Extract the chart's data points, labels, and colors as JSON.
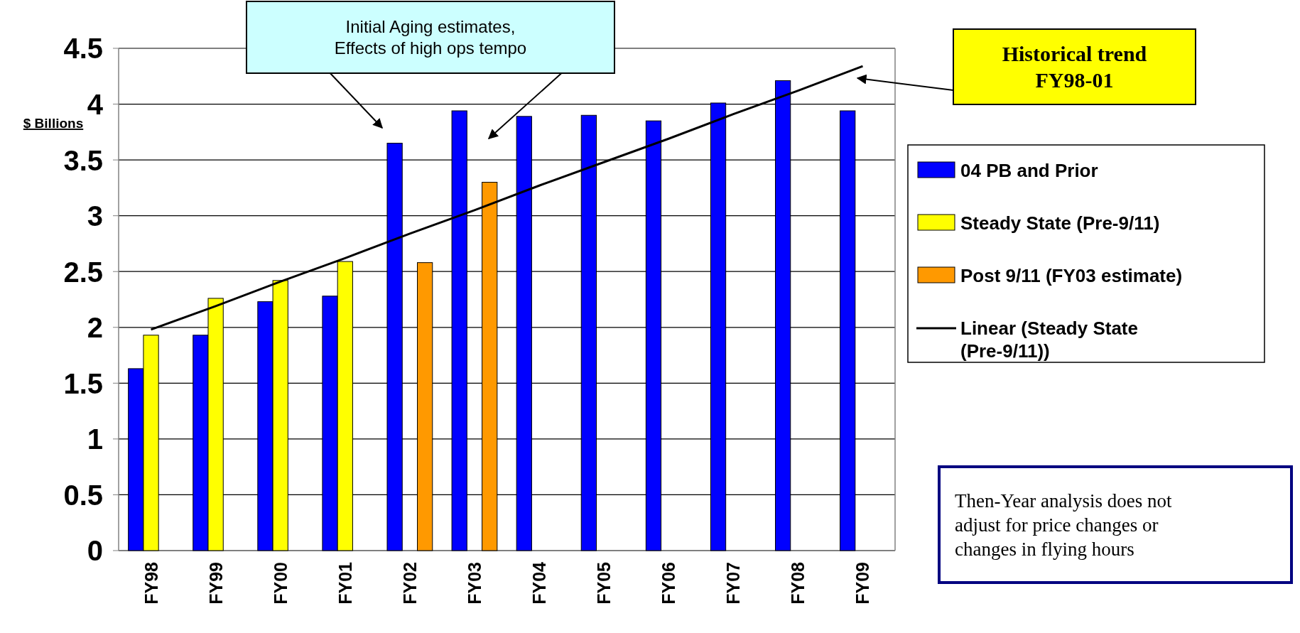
{
  "chart_data": {
    "type": "bar",
    "ylabel": "$ Billions",
    "categories": [
      "FY98",
      "FY99",
      "FY00",
      "FY01",
      "FY02",
      "FY03",
      "FY04",
      "FY05",
      "FY06",
      "FY07",
      "FY08",
      "FY09"
    ],
    "series": [
      {
        "name": "04 PB and Prior",
        "color": "#0000ff",
        "values": [
          1.63,
          1.93,
          2.23,
          2.28,
          3.65,
          3.94,
          3.89,
          3.9,
          3.85,
          4.01,
          4.21,
          3.94
        ]
      },
      {
        "name": "Steady State (Pre-9/11)",
        "color": "#ffff00",
        "values": [
          1.93,
          2.26,
          2.42,
          2.59,
          null,
          null,
          null,
          null,
          null,
          null,
          null,
          null
        ]
      },
      {
        "name": "Post 9/11 (FY03 estimate)",
        "color": "#ff9900",
        "values": [
          null,
          null,
          null,
          null,
          2.58,
          3.3,
          null,
          null,
          null,
          null,
          null,
          null
        ]
      },
      {
        "name": "Linear (Steady State (Pre-9/11))",
        "type": "line",
        "color": "#000000",
        "values": [
          1.98,
          2.19,
          2.41,
          2.62,
          2.84,
          3.05,
          3.27,
          3.48,
          3.69,
          3.91,
          4.12,
          4.34
        ]
      }
    ],
    "ylim": [
      0,
      4.5
    ],
    "yticks": [
      0,
      0.5,
      1,
      1.5,
      2,
      2.5,
      3,
      3.5,
      4,
      4.5
    ],
    "grid": "y",
    "legend": "right",
    "marker": "none",
    "line_style": "solid",
    "annotations": [
      {
        "text": "Initial Aging estimates,\nEffects of high ops tempo"
      },
      {
        "text": "Historical trend\nFY98-01"
      },
      {
        "text": "Then-Year analysis does not\nadjust for price changes or\nchanges in flying hours"
      }
    ]
  }
}
